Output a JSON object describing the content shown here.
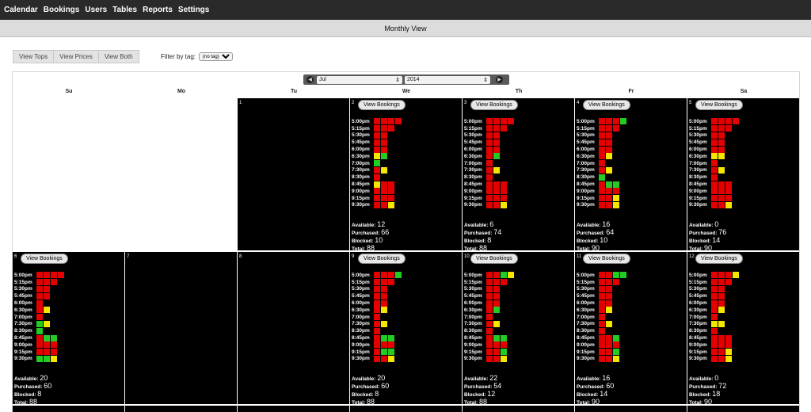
{
  "nav": [
    "Calendar",
    "Bookings",
    "Users",
    "Tables",
    "Reports",
    "Settings"
  ],
  "title": "Monthly View",
  "view_buttons": [
    "View Tops",
    "View Prices",
    "View Both"
  ],
  "filter": {
    "label": "Filter by tag:",
    "value": "(no tag)"
  },
  "month_selector": {
    "month": "Jul",
    "year": "2014"
  },
  "days_of_week": [
    "Su",
    "Mo",
    "Tu",
    "We",
    "Th",
    "Fr",
    "Sa"
  ],
  "view_bookings_label": "View Bookings",
  "stat_labels": {
    "available": "Available:",
    "purchased": "Purchased:",
    "blocked": "Blocked:",
    "total": "Total:"
  },
  "slot_times": [
    "5:00pm",
    "5:15pm",
    "5:30pm",
    "5:45pm",
    "6:00pm",
    "6:30pm",
    "7:00pm",
    "7:30pm",
    "8:30pm",
    "8:45pm",
    "9:00pm",
    "9:15pm",
    "9:30pm"
  ],
  "colors": {
    "red": "#e50000",
    "green": "#22cc22",
    "yellow": "#f5e600"
  },
  "days": [
    {
      "day": "1",
      "empty_black": true
    },
    {
      "day": "2",
      "slots": [
        "rrrr",
        "rrr",
        "rr",
        "rr",
        "rr",
        "yg",
        "g",
        "ry",
        "r",
        "yrr",
        "rrr",
        "rrr",
        "rry"
      ],
      "available": "12",
      "purchased": "66",
      "blocked": "10",
      "total": "88"
    },
    {
      "day": "3",
      "slots": [
        "rrrr",
        "rrr",
        "rr",
        "rr",
        "rr",
        "rg",
        "r",
        "ry",
        "r",
        "rrr",
        "rrr",
        "rrr",
        "rry"
      ],
      "available": "6",
      "purchased": "74",
      "blocked": "8",
      "total": "88"
    },
    {
      "day": "4",
      "slots": [
        "rrrg",
        "rrr",
        "rr",
        "rr",
        "rr",
        "ry",
        "r",
        "ry",
        "g",
        "rgg",
        "rrr",
        "rry",
        "rry"
      ],
      "available": "16",
      "purchased": "64",
      "blocked": "10",
      "total": "90"
    },
    {
      "day": "5",
      "slots": [
        "rrrr",
        "rrr",
        "rr",
        "rr",
        "rr",
        "yy",
        "r",
        "ry",
        "r",
        "rrr",
        "rrr",
        "rrr",
        "rry"
      ],
      "available": "0",
      "purchased": "76",
      "blocked": "14",
      "total": "90"
    },
    {
      "day": "6",
      "slots": [
        "rrrr",
        "rrr",
        "rr",
        "rr",
        "r",
        "ry",
        "r",
        "gy",
        "g",
        "rgg",
        "rrr",
        "rrr",
        "ggy"
      ],
      "available": "20",
      "purchased": "60",
      "blocked": "8",
      "total": "88"
    },
    {
      "day": "7",
      "empty_black": true
    },
    {
      "day": "8",
      "empty_black": true
    },
    {
      "day": "9",
      "slots": [
        "rrrg",
        "rrr",
        "rr",
        "rr",
        "rr",
        "ry",
        "r",
        "ry",
        "r",
        "rgg",
        "rrr",
        "rgg",
        "rry"
      ],
      "available": "20",
      "purchased": "60",
      "blocked": "8",
      "total": "88"
    },
    {
      "day": "10",
      "slots": [
        "rrgy",
        "rrr",
        "rr",
        "rr",
        "rr",
        "rg",
        "r",
        "ry",
        "r",
        "rgg",
        "rrr",
        "rrg",
        "rry"
      ],
      "available": "22",
      "purchased": "54",
      "blocked": "12",
      "total": "88"
    },
    {
      "day": "11",
      "slots": [
        "rrgg",
        "rrr",
        "rr",
        "rr",
        "rr",
        "ry",
        "r",
        "ry",
        "r",
        "rrg",
        "rrr",
        "rrg",
        "rry"
      ],
      "available": "16",
      "purchased": "60",
      "blocked": "14",
      "total": "90"
    },
    {
      "day": "12",
      "slots": [
        "rrry",
        "rrr",
        "rr",
        "rr",
        "rr",
        "ry",
        "r",
        "yy",
        "r",
        "rrr",
        "rrr",
        "rry",
        "rry"
      ],
      "available": "0",
      "purchased": "72",
      "blocked": "18",
      "total": "90"
    }
  ]
}
